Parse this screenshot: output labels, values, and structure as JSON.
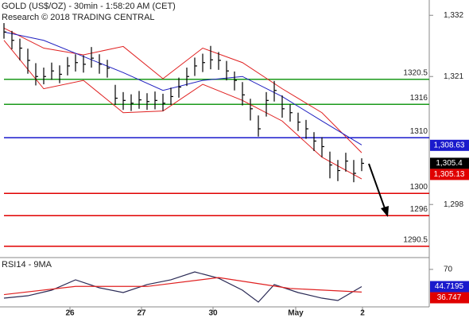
{
  "chart_data": [
    {
      "type": "ohlc",
      "title": "GOLD (US$/OZ) - 30min - 1:58:20 AM (CET)",
      "subtitle": "Research © 2018 TRADING CENTRAL",
      "x": [
        0,
        1,
        2,
        3,
        4,
        5,
        6,
        7,
        8,
        9,
        10,
        11,
        12,
        13,
        14,
        15,
        16,
        17,
        18,
        19,
        20,
        21,
        22,
        23,
        24,
        25,
        26,
        27,
        28,
        29,
        30,
        31,
        32,
        33,
        34,
        35,
        36,
        37,
        38,
        39,
        40,
        41,
        42,
        43,
        44,
        45
      ],
      "high": [
        1330.6,
        1329.2,
        1327.8,
        1326.0,
        1323.4,
        1322.6,
        1323.5,
        1323.0,
        1324.5,
        1325.0,
        1324.8,
        1326.3,
        1325.0,
        1324.0,
        1319.5,
        1318.2,
        1317.8,
        1318.4,
        1318.0,
        1318.3,
        1317.9,
        1319.0,
        1320.8,
        1322.6,
        1324.4,
        1325.1,
        1326.5,
        1325.4,
        1323.8,
        1321.9,
        1320.0,
        1317.0,
        1314.0,
        1318.2,
        1320.2,
        1317.6,
        1316.0,
        1314.5,
        1313.2,
        1311.0,
        1310.1,
        1307.5,
        1306.0,
        1307.3,
        1306.0,
        1306.3
      ],
      "low": [
        1327.8,
        1325.9,
        1323.9,
        1321.5,
        1319.4,
        1319.6,
        1320.4,
        1319.8,
        1321.2,
        1321.9,
        1321.7,
        1322.6,
        1321.5,
        1320.8,
        1315.9,
        1315.0,
        1314.8,
        1315.2,
        1315.0,
        1315.1,
        1314.8,
        1315.9,
        1317.2,
        1319.3,
        1321.1,
        1321.8,
        1322.3,
        1322.2,
        1320.3,
        1318.5,
        1315.8,
        1313.1,
        1310.2,
        1313.8,
        1316.5,
        1313.6,
        1312.9,
        1311.2,
        1309.8,
        1307.6,
        1306.5,
        1302.7,
        1302.2,
        1303.9,
        1302.0,
        1304.0
      ],
      "close": [
        1329.0,
        1327.5,
        1326.1,
        1323.9,
        1321.0,
        1321.0,
        1322.0,
        1321.4,
        1322.9,
        1323.5,
        1323.2,
        1324.3,
        1323.2,
        1322.5,
        1317.1,
        1316.7,
        1316.2,
        1316.8,
        1316.5,
        1316.7,
        1316.2,
        1317.4,
        1319.1,
        1321.0,
        1322.9,
        1323.5,
        1324.0,
        1323.9,
        1322.0,
        1320.3,
        1317.7,
        1315.2,
        1311.6,
        1316.7,
        1318.5,
        1315.2,
        1314.5,
        1312.8,
        1311.6,
        1309.4,
        1308.4,
        1305.1,
        1304.1,
        1305.8,
        1303.6,
        1305.4
      ],
      "color": "#000000",
      "xlim": [
        -0.5,
        53.5
      ],
      "ylim": [
        1288.6,
        1334.75
      ],
      "yticks": [
        {
          "value": 1332,
          "label": "1,332"
        },
        {
          "value": 1321,
          "label": "1,321"
        },
        {
          "value": 1298,
          "label": "1,298"
        }
      ],
      "overlays": [
        {
          "color": "#e02020",
          "x": [
            0,
            5,
            10,
            15,
            20,
            25,
            30,
            35,
            40,
            45
          ],
          "values": [
            1329.7,
            1326.1,
            1324.9,
            1326.4,
            1320.6,
            1326.1,
            1323.5,
            1318.8,
            1314.5,
            1307.3
          ]
        },
        {
          "color": "#e02020",
          "x": [
            0,
            5,
            10,
            15,
            20,
            25,
            30,
            35,
            40,
            45
          ],
          "values": [
            1327.5,
            1318.8,
            1320.3,
            1314.5,
            1314.8,
            1319.6,
            1316.7,
            1313.0,
            1306.5,
            1302.6
          ]
        },
        {
          "color": "#2020c0",
          "x": [
            0,
            5,
            10,
            15,
            20,
            25,
            30,
            35,
            40,
            45
          ],
          "values": [
            1329.0,
            1327.5,
            1324.6,
            1321.7,
            1318.5,
            1320.3,
            1321.0,
            1317.4,
            1313.0,
            1308.7
          ]
        }
      ],
      "levels": [
        {
          "value": 1320.5,
          "color": "#1a9a1a"
        },
        {
          "value": 1316,
          "color": "#1a9a1a"
        },
        {
          "value": 1310,
          "color": "#1a1acc"
        },
        {
          "value": 1300,
          "color": "#e00000"
        },
        {
          "value": 1296,
          "color": "#e00000"
        },
        {
          "value": 1290.5,
          "color": "#e00000"
        }
      ],
      "markers": [
        {
          "value": 1308.63,
          "label": "1,308.63",
          "color": "#1a1acc"
        },
        {
          "value": 1305.4,
          "label": "1,305.4",
          "color": "#000000"
        },
        {
          "value": 1305.13,
          "label": "1,305.13",
          "color": "#e00000"
        }
      ]
    },
    {
      "type": "line",
      "title": "RSI14 - 9MA",
      "series": [
        {
          "color": "#2a2a55",
          "x": [
            0,
            3,
            6,
            9,
            12,
            15,
            18,
            21,
            24,
            27,
            30,
            32,
            34,
            37,
            40,
            42,
            45
          ],
          "values": [
            27.8,
            31.3,
            39.5,
            54.7,
            43.0,
            36.0,
            47.7,
            54.7,
            66.3,
            57.0,
            39.5,
            22.0,
            47.7,
            36.0,
            27.8,
            24.3,
            44.7195
          ]
        },
        {
          "color": "#e02020",
          "x": [
            0,
            9,
            18,
            27,
            36,
            45
          ],
          "values": [
            33,
            45,
            45,
            58,
            42,
            36.747
          ]
        }
      ],
      "xlim": [
        -0.5,
        53.5
      ],
      "ylim": [
        15,
        85
      ],
      "yticks": [
        70
      ],
      "xticks": [
        {
          "value": 8.3,
          "label": "26"
        },
        {
          "value": 17.3,
          "label": "27"
        },
        {
          "value": 26.3,
          "label": "30"
        },
        {
          "value": 36.7,
          "label": "May"
        },
        {
          "value": 45.1,
          "label": "2"
        }
      ],
      "markers": [
        {
          "value": 44.7195,
          "label": "44.7195",
          "color": "#1a1acc"
        },
        {
          "value": 36.747,
          "label": "36.747",
          "color": "#e00000"
        }
      ]
    }
  ]
}
